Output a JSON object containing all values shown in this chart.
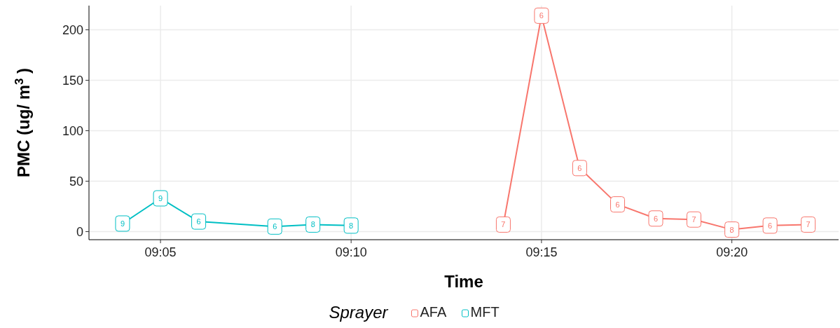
{
  "chart_data": {
    "type": "line",
    "xlabel": "Time",
    "ylabel": "PMC (ug/ m$^{3}$ )",
    "legend_title": "Sprayer",
    "legend": "bottom",
    "grid": true,
    "marker": "square",
    "xlim": [
      9.052,
      9.38
    ],
    "ylim": [
      -8,
      224
    ],
    "xticks": [
      {
        "value": 9.0833,
        "label": "09:05"
      },
      {
        "value": 9.1667,
        "label": "09:10"
      },
      {
        "value": 9.25,
        "label": "09:15"
      },
      {
        "value": 9.3333,
        "label": "09:20"
      }
    ],
    "yticks": [
      0,
      50,
      100,
      150,
      200
    ],
    "series": [
      {
        "name": "AFA",
        "color": "#f8766d",
        "x": [
          9.2333,
          9.25,
          9.2667,
          9.2833,
          9.3,
          9.3167,
          9.3333,
          9.35,
          9.3667
        ],
        "values": [
          7,
          214,
          63,
          27,
          13,
          12,
          2,
          6,
          7
        ]
      },
      {
        "name": "MFT",
        "color": "#00bfc4",
        "x": [
          9.0667,
          9.0833,
          9.1,
          9.1333,
          9.15,
          9.1667
        ],
        "values": [
          8,
          33,
          10,
          5,
          7,
          6
        ]
      }
    ],
    "annotations": [
      {
        "text": "9",
        "x": 9.0667,
        "y": 8
      },
      {
        "text": "9",
        "x": 9.0833,
        "y": 33
      },
      {
        "text": "6",
        "x": 9.1,
        "y": 10
      },
      {
        "text": "6",
        "x": 9.1333,
        "y": 5
      },
      {
        "text": "8",
        "x": 9.15,
        "y": 7
      },
      {
        "text": "8",
        "x": 9.1667,
        "y": 6
      },
      {
        "text": "7",
        "x": 9.2333,
        "y": 7
      },
      {
        "text": "6",
        "x": 9.25,
        "y": 214
      },
      {
        "text": "6",
        "x": 9.2667,
        "y": 63
      },
      {
        "text": "6",
        "x": 9.2833,
        "y": 27
      },
      {
        "text": "6",
        "x": 9.3,
        "y": 13
      },
      {
        "text": "7",
        "x": 9.3167,
        "y": 12
      },
      {
        "text": "8",
        "x": 9.3333,
        "y": 2
      },
      {
        "text": "6",
        "x": 9.35,
        "y": 6
      },
      {
        "text": "7",
        "x": 9.3667,
        "y": 7
      }
    ]
  }
}
